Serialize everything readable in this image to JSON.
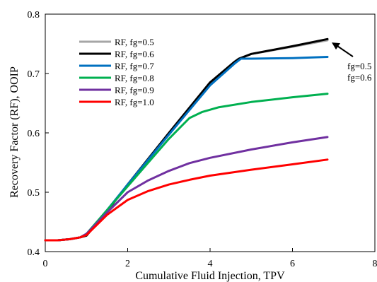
{
  "chart_data": {
    "type": "line",
    "title": "",
    "xlabel": "Cumulative Fluid Injection, TPV",
    "ylabel": "Recovery Factor (RF), OOIP",
    "xlim": [
      0,
      8
    ],
    "ylim": [
      0.4,
      0.8
    ],
    "xticks": [
      0,
      2,
      4,
      6,
      8
    ],
    "yticks": [
      0.4,
      0.5,
      0.6,
      0.7,
      0.8
    ],
    "grid": false,
    "legend_position": "upper-left",
    "series": [
      {
        "name": "RF, fg=0.5",
        "color": "#a6a6a6",
        "x": [
          0,
          0.3,
          0.6,
          0.85,
          1.0,
          1.5,
          2.0,
          3.0,
          4.0,
          4.6,
          4.7,
          5.0,
          6.0,
          6.85
        ],
        "y": [
          0.419,
          0.419,
          0.421,
          0.424,
          0.427,
          0.468,
          0.513,
          0.6,
          0.685,
          0.72,
          0.724,
          0.733,
          0.745,
          0.756
        ]
      },
      {
        "name": "RF, fg=0.6",
        "color": "#000000",
        "x": [
          0,
          0.3,
          0.6,
          0.85,
          1.0,
          1.5,
          2.0,
          3.0,
          4.0,
          4.6,
          4.7,
          5.0,
          6.0,
          6.85
        ],
        "y": [
          0.419,
          0.419,
          0.421,
          0.424,
          0.427,
          0.468,
          0.513,
          0.6,
          0.685,
          0.72,
          0.725,
          0.733,
          0.746,
          0.758
        ]
      },
      {
        "name": "RF, fg=0.7",
        "color": "#0070c0",
        "x": [
          0,
          0.3,
          0.6,
          0.85,
          1.0,
          1.5,
          2.0,
          3.0,
          4.0,
          4.6,
          4.75,
          5.0,
          6.0,
          6.85
        ],
        "y": [
          0.419,
          0.419,
          0.421,
          0.424,
          0.429,
          0.47,
          0.513,
          0.597,
          0.68,
          0.717,
          0.725,
          0.725,
          0.726,
          0.728
        ]
      },
      {
        "name": "RF, fg=0.8",
        "color": "#00b050",
        "x": [
          0,
          0.3,
          0.6,
          0.85,
          1.0,
          1.5,
          2.0,
          2.5,
          3.0,
          3.5,
          3.8,
          4.2,
          5.0,
          6.0,
          6.85
        ],
        "y": [
          0.419,
          0.419,
          0.421,
          0.424,
          0.43,
          0.47,
          0.51,
          0.55,
          0.59,
          0.625,
          0.635,
          0.643,
          0.652,
          0.66,
          0.666
        ]
      },
      {
        "name": "RF, fg=0.9",
        "color": "#7030a0",
        "x": [
          0,
          0.3,
          0.6,
          0.85,
          1.0,
          1.5,
          2.0,
          2.5,
          3.0,
          3.5,
          4.0,
          5.0,
          6.0,
          6.85
        ],
        "y": [
          0.419,
          0.419,
          0.421,
          0.424,
          0.43,
          0.466,
          0.5,
          0.52,
          0.536,
          0.549,
          0.558,
          0.572,
          0.584,
          0.593
        ]
      },
      {
        "name": "RF, fg=1.0",
        "color": "#ff0000",
        "x": [
          0,
          0.3,
          0.6,
          0.85,
          1.0,
          1.5,
          2.0,
          2.5,
          3.0,
          3.5,
          4.0,
          5.0,
          6.0,
          6.85
        ],
        "y": [
          0.419,
          0.419,
          0.421,
          0.424,
          0.428,
          0.462,
          0.487,
          0.502,
          0.513,
          0.521,
          0.528,
          0.538,
          0.547,
          0.555
        ]
      }
    ],
    "annotations": [
      {
        "text": "fg=0.5",
        "color": "#a6a6a6"
      },
      {
        "text": "fg=0.6",
        "color": "#000000"
      }
    ],
    "arrow": {
      "x": 6.85,
      "y": 0.757
    }
  }
}
